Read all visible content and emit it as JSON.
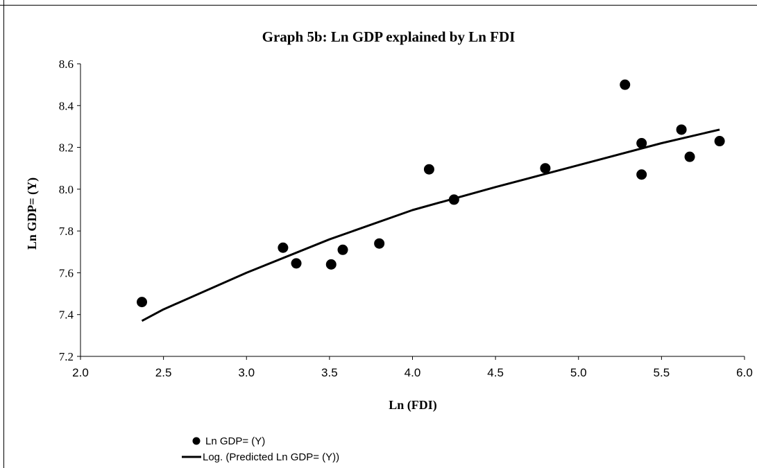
{
  "chart_data": {
    "type": "scatter",
    "title": "Graph 5b: Ln GDP explained by Ln FDI",
    "xlabel": "Ln (FDI)",
    "ylabel": "Ln GDP= (Y)",
    "xlim": [
      2.0,
      6.0
    ],
    "ylim": [
      7.2,
      8.6
    ],
    "x_ticks": [
      "2.0",
      "2.5",
      "3.0",
      "3.5",
      "4.0",
      "4.5",
      "5.0",
      "5.5",
      "6.0"
    ],
    "y_ticks": [
      "7.2",
      "7.4",
      "7.6",
      "7.8",
      "8.0",
      "8.2",
      "8.4",
      "8.6"
    ],
    "grid": false,
    "legend_position": "bottom-left",
    "series": [
      {
        "name": "Ln GDP= (Y)",
        "kind": "points",
        "color": "#000000",
        "x": [
          2.37,
          3.22,
          3.3,
          3.51,
          3.58,
          3.8,
          4.1,
          4.25,
          4.8,
          5.28,
          5.38,
          5.38,
          5.62,
          5.67,
          5.85
        ],
        "y": [
          7.46,
          7.72,
          7.645,
          7.64,
          7.71,
          7.74,
          8.095,
          7.95,
          8.1,
          8.5,
          8.22,
          8.07,
          8.285,
          8.155,
          8.23
        ]
      },
      {
        "name": "Log. (Predicted Ln GDP= (Y))",
        "kind": "log-trendline",
        "color": "#000000",
        "x": [
          2.37,
          2.5,
          3.0,
          3.5,
          4.0,
          4.5,
          5.0,
          5.5,
          5.85
        ],
        "y": [
          7.37,
          7.425,
          7.6,
          7.76,
          7.9,
          8.01,
          8.115,
          8.22,
          8.285
        ]
      }
    ]
  }
}
